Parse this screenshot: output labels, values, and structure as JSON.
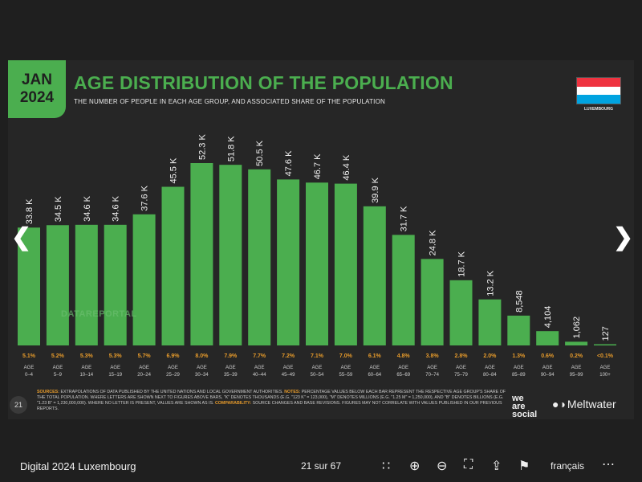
{
  "slide": {
    "badge_line1": "JAN",
    "badge_line2": "2024",
    "title": "AGE DISTRIBUTION OF THE POPULATION",
    "subtitle": "THE NUMBER OF PEOPLE IN EACH AGE GROUP, AND ASSOCIATED SHARE OF THE POPULATION",
    "country": "LUXEMBOURG",
    "flag_colors": [
      "#ef3340",
      "#ffffff",
      "#00a3e0"
    ],
    "watermark": "DATAREPORTAL",
    "page_number": "21",
    "footnote_sources_label": "SOURCES:",
    "footnote_sources": "EXTRAPOLATIONS OF DATA PUBLISHED BY THE UNITED NATIONS AND LOCAL GOVERNMENT AUTHORITIES.",
    "footnote_notes_label": "NOTES:",
    "footnote_notes": "PERCENTAGE VALUES BELOW EACH BAR REPRESENT THE RESPECTIVE AGE GROUP'S SHARE OF THE TOTAL POPULATION. WHERE LETTERS ARE SHOWN NEXT TO FIGURES ABOVE BARS, \"K\" DENOTES THOUSANDS (E.G. \"123 K\" = 123,000), \"M\" DENOTES MILLIONS (E.G. \"1.25 M\" = 1,250,000), AND \"B\" DENOTES BILLIONS (E.G. \"1.23 B\" = 1,230,000,000). WHERE NO LETTER IS PRESENT, VALUES ARE SHOWN AS IS.",
    "footnote_comp_label": "COMPARABILITY:",
    "footnote_comp": "SOURCE CHANGES AND BASE REVISIONS. FIGURES MAY NOT CORRELATE WITH VALUES PUBLISHED IN OUR PREVIOUS REPORTS.",
    "brand_was": "we are social",
    "brand_meltwater": "Meltwater",
    "accent_color": "#4bae4f",
    "share_color": "#e59a2b"
  },
  "chart_data": {
    "type": "bar",
    "categories": [
      "0–4",
      "5–9",
      "10–14",
      "15–19",
      "20–24",
      "25–29",
      "30–34",
      "35–39",
      "40–44",
      "45–49",
      "50–54",
      "55–59",
      "60–64",
      "65–69",
      "70–74",
      "75–79",
      "80–84",
      "85–89",
      "90–94",
      "95–99",
      "100+"
    ],
    "category_prefix": "AGE",
    "values": [
      33800,
      34500,
      34600,
      34600,
      37600,
      45500,
      52300,
      51800,
      50500,
      47600,
      46700,
      46400,
      39900,
      31700,
      24800,
      18700,
      13200,
      8548,
      4104,
      1062,
      127
    ],
    "value_labels": [
      "33.8 K",
      "34.5 K",
      "34.6 K",
      "34.6 K",
      "37.6 K",
      "45.5 K",
      "52.3 K",
      "51.8 K",
      "50.5 K",
      "47.6 K",
      "46.7 K",
      "46.4 K",
      "39.9 K",
      "31.7 K",
      "24.8 K",
      "18.7 K",
      "13.2 K",
      "8,548",
      "4,104",
      "1,062",
      "127"
    ],
    "shares": [
      "5.1%",
      "5.2%",
      "5.3%",
      "5.3%",
      "5.7%",
      "6.9%",
      "8.0%",
      "7.9%",
      "7.7%",
      "7.2%",
      "7.1%",
      "7.0%",
      "6.1%",
      "4.8%",
      "3.8%",
      "2.8%",
      "2.0%",
      "1.3%",
      "0.6%",
      "0.2%",
      "<0.1%"
    ],
    "ylim": [
      0,
      52300
    ],
    "bar_color": "#4bae4f"
  },
  "toolbar": {
    "doc_title": "Digital 2024 Luxembourg",
    "page_indicator": "21 sur 67",
    "language": "français"
  }
}
